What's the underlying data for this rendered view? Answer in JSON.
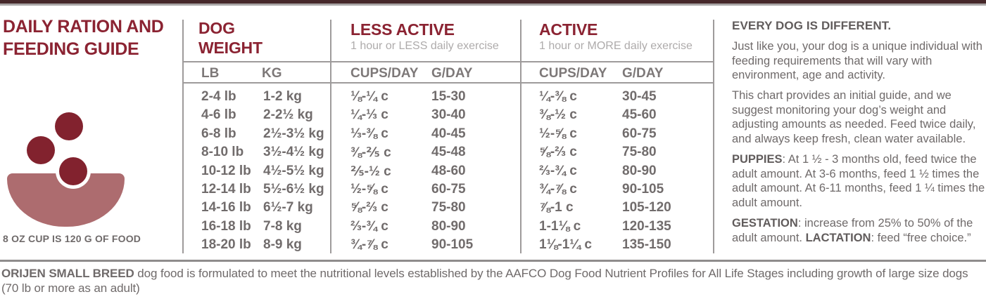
{
  "left_panel": {
    "title": "DAILY RATION AND FEEDING GUIDE",
    "cup_note": "8 OZ CUP IS 120 G OF FOOD"
  },
  "table": {
    "groups": [
      {
        "title": "DOG WEIGHT",
        "subtitle": ""
      },
      {
        "title": "LESS ACTIVE",
        "subtitle": "1 hour or LESS daily exercise"
      },
      {
        "title": "ACTIVE",
        "subtitle": "1 hour or MORE daily exercise"
      }
    ],
    "columns": [
      "LB",
      "KG",
      "CUPS/DAY",
      "G/DAY",
      "CUPS/DAY",
      "G/DAY"
    ],
    "rows": [
      [
        "2-4 lb",
        "1-2 kg",
        "⅛-¼ c",
        "15-30",
        "¼-⅜ c",
        "30-45"
      ],
      [
        "4-6 lb",
        "2-2½ kg",
        "¼-⅓ c",
        "30-40",
        "⅜-½ c",
        "45-60"
      ],
      [
        "6-8 lb",
        "2½-3½ kg",
        "⅓-⅜ c",
        "40-45",
        "½-⅝ c",
        "60-75"
      ],
      [
        "8-10 lb",
        "3½-4½ kg",
        "⅜-⅖ c",
        "45-48",
        "⅝-⅔ c",
        "75-80"
      ],
      [
        "10-12 lb",
        "4½-5½ kg",
        "⅖-½ c",
        "48-60",
        "⅔-¾ c",
        "80-90"
      ],
      [
        "12-14 lb",
        "5½-6½ kg",
        "½-⅝ c",
        "60-75",
        "¾-⅞ c",
        "90-105"
      ],
      [
        "14-16 lb",
        "6½-7 kg",
        "⅝-⅔ c",
        "75-80",
        "⅞-1 c",
        "105-120"
      ],
      [
        "16-18 lb",
        "7-8 kg",
        "⅔-¾ c",
        "80-90",
        "1-1⅛ c",
        "120-135"
      ],
      [
        "18-20 lb",
        "8-9 kg",
        "¾-⅞ c",
        "90-105",
        "1⅛-1¼ c",
        "135-150"
      ]
    ]
  },
  "info_panel": {
    "heading": "EVERY DOG IS DIFFERENT.",
    "para1": "Just like you, your dog is a unique individual with feeding requirements that will vary with environment, age and activity.",
    "para2": "This chart provides an initial guide, and we suggest monitoring your dog’s weight and adjusting amounts as needed. Feed twice daily, and always keep fresh, clean water available.",
    "puppies_label": "PUPPIES",
    "puppies_text": ": At 1 ½ - 3 months old, feed twice the adult amount. At 3-6 months, feed 1 ½ times the adult amount. At 6-11 months, feed 1 ¼ times the adult amount.",
    "gestation_label": "GESTATION",
    "gestation_text": ": increase from 25% to 50% of the adult amount. ",
    "lactation_label": "LACTATION",
    "lactation_text": ": feed “free choice.”"
  },
  "footer": {
    "line1_bold": "ORIJEN SMALL BREED",
    "line1_rest": " dog food is formulated to meet the nutritional levels established by the AAFCO Dog Food Nutrient Profiles for All Life Stages including growth of large size dogs",
    "line2": "(70 lb or more as an adult)"
  },
  "colors": {
    "brand_red": "#8b2332",
    "top_bar": "#46282a",
    "kibble": "#82222e",
    "bowl": "#ad6c6f",
    "body_text": "#6f6a6a",
    "muted_text": "#aeabab",
    "divider": "#9e9b9b"
  }
}
